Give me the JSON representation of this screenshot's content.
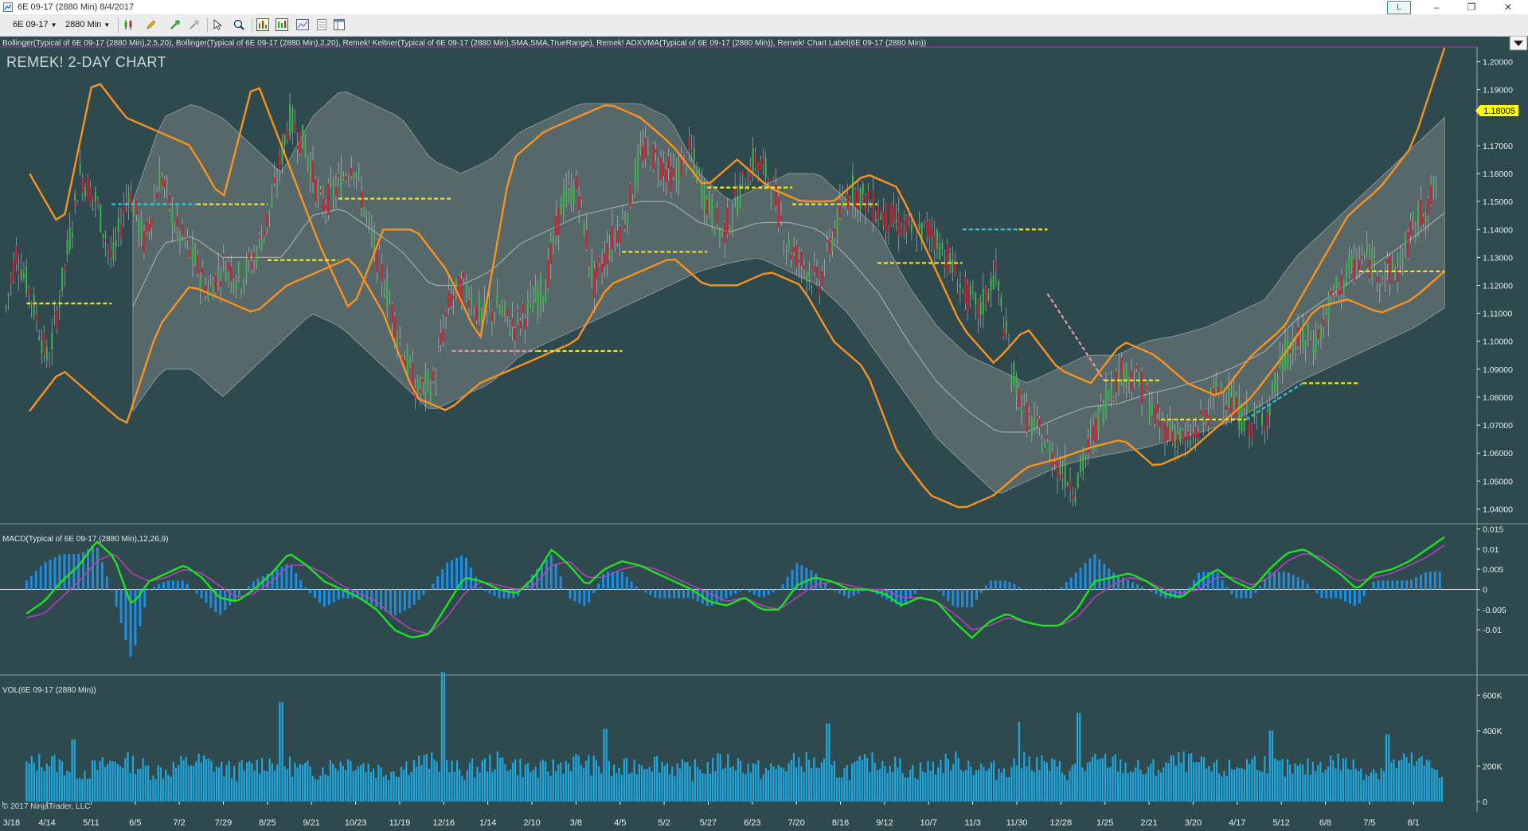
{
  "window": {
    "title": "6E 09-17 (2880 Min)  8/4/2017",
    "badge": "L",
    "controls": {
      "minimize": "–",
      "maximize": "❐",
      "close": "✕"
    }
  },
  "toolbar": {
    "instrument": "6E 09-17",
    "interval": "2880 Min",
    "icons": [
      "candlestick-style-icon",
      "pencil-draw-icon",
      "pin-add-icon",
      "pin-remove-icon",
      "cursor-select-icon",
      "zoom-icon",
      "indicators-icon",
      "strategies-icon",
      "chart-properties-icon",
      "data-box-icon",
      "template-icon"
    ]
  },
  "indicators_header": "Bollinger(Typical of 6E 09-17 (2880 Min),2.5,20), Bollinger(Typical of 6E 09-17 (2880 Min),2,20), Remek! Keltner(Typical of 6E 09-17 (2880 Min),SMA,SMA,TrueRange), Remek! ADXVMA(Typical of 6E 09-17 (2880 Min)), Remek! Chart Label(6E 09-17 (2880 Min))",
  "chart_label": "REMEK! 2-DAY CHART",
  "current_price": "1.18005",
  "copyright": "© 2017 NinjaTrader, LLC",
  "colors": {
    "background": "#2f4a4f",
    "orange_band": "#f7931e",
    "cloud": "#8a8f8f",
    "adx_yellow": "#f2e61e",
    "adx_cyan": "#2cc7e0",
    "adx_pink": "#e59aa0",
    "candle_up": "#3cb44b",
    "candle_down": "#d02030",
    "macd_line": "#22e022",
    "macd_signal": "#c040c0",
    "histogram": "#1f8de0",
    "volume": "#1fa8e0",
    "price_marker": "#ffff00"
  },
  "chart_data": [
    {
      "type": "candlestick",
      "title": "",
      "x_labels": [
        "3/18",
        "4/14",
        "5/11",
        "6/5",
        "7/2",
        "7/29",
        "8/25",
        "9/21",
        "10/23",
        "11/19",
        "12/16",
        "1/14",
        "2/10",
        "3/8",
        "4/5",
        "5/2",
        "5/27",
        "6/23",
        "7/20",
        "8/16",
        "9/12",
        "10/7",
        "11/3",
        "11/30",
        "12/28",
        "1/25",
        "2/21",
        "3/20",
        "4/17",
        "5/12",
        "6/8",
        "7/5",
        "8/1"
      ],
      "y_labels": [
        "1.20000",
        "1.19000",
        "1.17000",
        "1.16000",
        "1.15000",
        "1.14000",
        "1.13000",
        "1.12000",
        "1.11000",
        "1.10000",
        "1.09000",
        "1.08000",
        "1.07000",
        "1.06000",
        "1.05000",
        "1.04000"
      ],
      "ylim": [
        1.035,
        1.205
      ],
      "close": [
        1.1,
        1.132,
        1.115,
        1.092,
        1.125,
        1.16,
        1.15,
        1.128,
        1.155,
        1.135,
        1.16,
        1.14,
        1.13,
        1.118,
        1.128,
        1.122,
        1.132,
        1.15,
        1.18,
        1.17,
        1.148,
        1.155,
        1.165,
        1.14,
        1.12,
        1.098,
        1.082,
        1.085,
        1.115,
        1.12,
        1.108,
        1.112,
        1.105,
        1.112,
        1.12,
        1.15,
        1.155,
        1.12,
        1.135,
        1.145,
        1.168,
        1.165,
        1.158,
        1.168,
        1.15,
        1.138,
        1.152,
        1.165,
        1.158,
        1.135,
        1.128,
        1.12,
        1.14,
        1.155,
        1.15,
        1.145,
        1.142,
        1.138,
        1.14,
        1.13,
        1.118,
        1.11,
        1.125,
        1.09,
        1.072,
        1.065,
        1.055,
        1.048,
        1.065,
        1.082,
        1.09,
        1.085,
        1.072,
        1.068,
        1.063,
        1.072,
        1.085,
        1.075,
        1.07,
        1.075,
        1.095,
        1.1,
        1.1,
        1.115,
        1.125,
        1.13,
        1.125,
        1.125,
        1.14,
        1.15,
        1.16,
        1.17,
        1.182
      ],
      "bands": {
        "orange_upper": [
          1.16,
          1.14,
          1.195,
          1.18,
          1.175,
          1.17,
          1.15,
          1.195,
          1.165,
          1.135,
          1.11,
          1.14,
          1.14,
          1.125,
          1.1,
          1.165,
          1.175,
          1.18,
          1.185,
          1.18,
          1.17,
          1.155,
          1.165,
          1.155,
          1.15,
          1.15,
          1.16,
          1.155,
          1.13,
          1.105,
          1.092,
          1.105,
          1.09,
          1.085,
          1.1,
          1.095,
          1.085,
          1.08,
          1.095,
          1.105,
          1.125,
          1.145,
          1.155,
          1.17,
          1.205
        ],
        "orange_lower": [
          1.075,
          1.09,
          1.08,
          1.07,
          1.105,
          1.12,
          1.115,
          1.11,
          1.12,
          1.125,
          1.13,
          1.11,
          1.08,
          1.075,
          1.085,
          1.09,
          1.095,
          1.1,
          1.12,
          1.125,
          1.13,
          1.12,
          1.12,
          1.125,
          1.12,
          1.1,
          1.09,
          1.06,
          1.045,
          1.04,
          1.045,
          1.055,
          1.058,
          1.062,
          1.065,
          1.055,
          1.06,
          1.07,
          1.08,
          1.095,
          1.112,
          1.115,
          1.11,
          1.115,
          1.125
        ],
        "cloud_upper": [
          1.15,
          1.18,
          1.185,
          1.18,
          1.17,
          1.16,
          1.18,
          1.19,
          1.185,
          1.18,
          1.165,
          1.16,
          1.165,
          1.175,
          1.18,
          1.185,
          1.185,
          1.185,
          1.18,
          1.16,
          1.15,
          1.155,
          1.16,
          1.16,
          1.15,
          1.14,
          1.12,
          1.105,
          1.095,
          1.09,
          1.085,
          1.09,
          1.095,
          1.095,
          1.1,
          1.102,
          1.105,
          1.11,
          1.115,
          1.13,
          1.14,
          1.15,
          1.16,
          1.17,
          1.18
        ],
        "cloud_lower": [
          1.075,
          1.09,
          1.09,
          1.08,
          1.09,
          1.1,
          1.11,
          1.105,
          1.095,
          1.085,
          1.075,
          1.08,
          1.085,
          1.095,
          1.1,
          1.105,
          1.11,
          1.115,
          1.12,
          1.125,
          1.128,
          1.13,
          1.125,
          1.12,
          1.11,
          1.095,
          1.08,
          1.065,
          1.055,
          1.045,
          1.05,
          1.055,
          1.058,
          1.06,
          1.062,
          1.065,
          1.068,
          1.072,
          1.078,
          1.085,
          1.09,
          1.095,
          1.1,
          1.105,
          1.112
        ],
        "adx_levels": [
          [
            0.0,
            0.06,
            1.1135,
            "yellow"
          ],
          [
            0.06,
            0.12,
            1.149,
            "cyan"
          ],
          [
            0.12,
            0.17,
            1.149,
            "yellow"
          ],
          [
            0.17,
            0.22,
            1.129,
            "yellow"
          ],
          [
            0.22,
            0.3,
            1.151,
            "yellow"
          ],
          [
            0.3,
            0.36,
            1.0965,
            "pink"
          ],
          [
            0.36,
            0.42,
            1.0965,
            "yellow"
          ],
          [
            0.42,
            0.48,
            1.132,
            "yellow"
          ],
          [
            0.48,
            0.54,
            1.155,
            "yellow"
          ],
          [
            0.54,
            0.6,
            1.149,
            "yellow"
          ],
          [
            0.6,
            0.66,
            1.128,
            "yellow"
          ],
          [
            0.66,
            0.7,
            1.14,
            "cyan"
          ],
          [
            0.7,
            0.72,
            1.14,
            "yellow"
          ],
          [
            0.72,
            0.76,
            1.117,
            "pink"
          ],
          [
            0.76,
            0.8,
            1.086,
            "yellow"
          ],
          [
            0.8,
            0.86,
            1.072,
            "yellow"
          ],
          [
            0.86,
            0.9,
            1.072,
            "cyan"
          ],
          [
            0.9,
            0.94,
            1.085,
            "yellow"
          ],
          [
            0.94,
            1.0,
            1.125,
            "yellow"
          ]
        ]
      }
    },
    {
      "type": "bar+line",
      "title": "MACD(Typical of 6E 09-17 (2880 Min),12,26,9)",
      "y_labels": [
        "0.015",
        "0.01",
        "0.005",
        "0",
        "-0.005",
        "-0.01"
      ],
      "ylim": [
        -0.0145,
        0.0155
      ],
      "macd": [
        -0.006,
        -0.003,
        0.002,
        0.006,
        0.012,
        0.008,
        -0.004,
        0.002,
        0.004,
        0.006,
        0.003,
        -0.002,
        -0.003,
        0.0,
        0.004,
        0.009,
        0.006,
        0.002,
        0.0,
        -0.002,
        -0.005,
        -0.01,
        -0.012,
        -0.011,
        -0.004,
        0.003,
        0.002,
        0.0,
        -0.001,
        0.003,
        0.01,
        0.006,
        0.001,
        0.005,
        0.007,
        0.006,
        0.004,
        0.002,
        0.0,
        -0.003,
        -0.004,
        -0.002,
        -0.005,
        -0.005,
        0.001,
        0.003,
        0.002,
        0.0,
        0.0,
        -0.001,
        -0.004,
        -0.002,
        -0.003,
        -0.008,
        -0.012,
        -0.008,
        -0.006,
        -0.008,
        -0.009,
        -0.009,
        -0.005,
        0.002,
        0.003,
        0.004,
        0.002,
        -0.001,
        -0.002,
        0.002,
        0.005,
        0.002,
        0.0,
        0.005,
        0.009,
        0.01,
        0.007,
        0.004,
        0.0,
        0.004,
        0.005,
        0.007,
        0.01,
        0.013
      ],
      "signal": [
        -0.007,
        -0.006,
        -0.002,
        0.002,
        0.007,
        0.009,
        0.004,
        0.002,
        0.003,
        0.005,
        0.004,
        0.001,
        -0.002,
        -0.001,
        0.002,
        0.006,
        0.006,
        0.004,
        0.001,
        -0.001,
        -0.003,
        -0.007,
        -0.01,
        -0.011,
        -0.007,
        -0.001,
        0.002,
        0.001,
        0.0,
        0.001,
        0.006,
        0.007,
        0.003,
        0.003,
        0.005,
        0.006,
        0.005,
        0.003,
        0.001,
        -0.001,
        -0.003,
        -0.002,
        -0.004,
        -0.005,
        -0.002,
        0.001,
        0.002,
        0.001,
        0.0,
        0.0,
        -0.002,
        -0.002,
        -0.003,
        -0.006,
        -0.01,
        -0.009,
        -0.007,
        -0.008,
        -0.009,
        -0.009,
        -0.007,
        -0.002,
        0.001,
        0.003,
        0.002,
        0.0,
        -0.001,
        0.0,
        0.003,
        0.003,
        0.001,
        0.003,
        0.007,
        0.009,
        0.008,
        0.005,
        0.002,
        0.003,
        0.004,
        0.006,
        0.008,
        0.011
      ]
    },
    {
      "type": "bar",
      "title": "VOL(6E 09-17 (2880 Min))",
      "y_labels": [
        "600K",
        "400K",
        "200K",
        "0"
      ],
      "ylim": [
        0,
        700000
      ],
      "peaks": [
        [
          0.05,
          350000
        ],
        [
          0.19,
          560000
        ],
        [
          0.3,
          730000
        ],
        [
          0.41,
          410000
        ],
        [
          0.56,
          440000
        ],
        [
          0.69,
          450000
        ],
        [
          0.73,
          500000
        ],
        [
          0.86,
          400000
        ],
        [
          0.94,
          380000
        ]
      ]
    }
  ]
}
